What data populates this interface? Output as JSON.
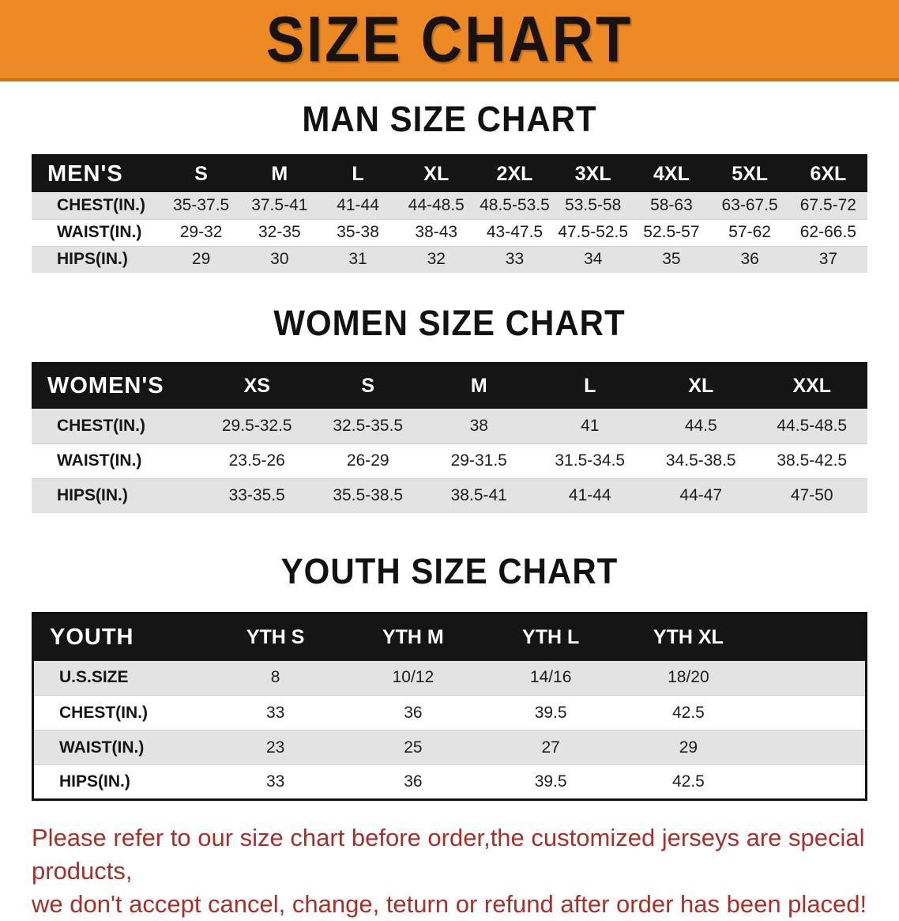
{
  "banner": {
    "title": "SIZE CHART"
  },
  "sections": [
    {
      "title": "MAN SIZE CHART",
      "header_label": "MEN'S",
      "columns": [
        "S",
        "M",
        "L",
        "XL",
        "2XL",
        "3XL",
        "4XL",
        "5XL",
        "6XL"
      ],
      "rows": [
        {
          "label": "CHEST(IN.)",
          "values": [
            "35-37.5",
            "37.5-41",
            "41-44",
            "44-48.5",
            "48.5-53.5",
            "53.5-58",
            "58-63",
            "63-67.5",
            "67.5-72"
          ]
        },
        {
          "label": "WAIST(IN.)",
          "values": [
            "29-32",
            "32-35",
            "35-38",
            "38-43",
            "43-47.5",
            "47.5-52.5",
            "52.5-57",
            "57-62",
            "62-66.5"
          ]
        },
        {
          "label": "HIPS(IN.)",
          "values": [
            "29",
            "30",
            "31",
            "32",
            "33",
            "34",
            "35",
            "36",
            "37"
          ]
        }
      ]
    },
    {
      "title": "WOMEN SIZE CHART",
      "header_label": "WOMEN'S",
      "columns": [
        "XS",
        "S",
        "M",
        "L",
        "XL",
        "XXL"
      ],
      "rows": [
        {
          "label": "CHEST(IN.)",
          "values": [
            "29.5-32.5",
            "32.5-35.5",
            "38",
            "41",
            "44.5",
            "44.5-48.5"
          ]
        },
        {
          "label": "WAIST(IN.)",
          "values": [
            "23.5-26",
            "26-29",
            "29-31.5",
            "31.5-34.5",
            "34.5-38.5",
            "38.5-42.5"
          ]
        },
        {
          "label": "HIPS(IN.)",
          "values": [
            "33-35.5",
            "35.5-38.5",
            "38.5-41",
            "41-44",
            "44-47",
            "47-50"
          ]
        }
      ]
    },
    {
      "title": "YOUTH SIZE CHART",
      "header_label": "YOUTH",
      "columns": [
        "YTH S",
        "YTH M",
        "YTH L",
        "YTH XL"
      ],
      "rows": [
        {
          "label": "U.S.SIZE",
          "values": [
            "8",
            "10/12",
            "14/16",
            "18/20"
          ]
        },
        {
          "label": "CHEST(IN.)",
          "values": [
            "33",
            "36",
            "39.5",
            "42.5"
          ]
        },
        {
          "label": "WAIST(IN.)",
          "values": [
            "23",
            "25",
            "27",
            "29"
          ]
        },
        {
          "label": "HIPS(IN.)",
          "values": [
            "33",
            "36",
            "39.5",
            "42.5"
          ]
        }
      ]
    }
  ],
  "disclaimer": {
    "line1": "Please refer to our size chart before order,the customized jerseys are special products,",
    "line2": "we don't accept cancel, change, teturn or refund after order has been placed!"
  },
  "colors": {
    "banner_bg": "#EE8A24",
    "banner_edge": "#C9720E",
    "banner_text": "#181310",
    "header_bg": "#151515",
    "header_text": "#FFFFFF",
    "row_stripe": "#E3E3E3",
    "table_border": "#111111",
    "disclaimer_text": "#A93028"
  }
}
